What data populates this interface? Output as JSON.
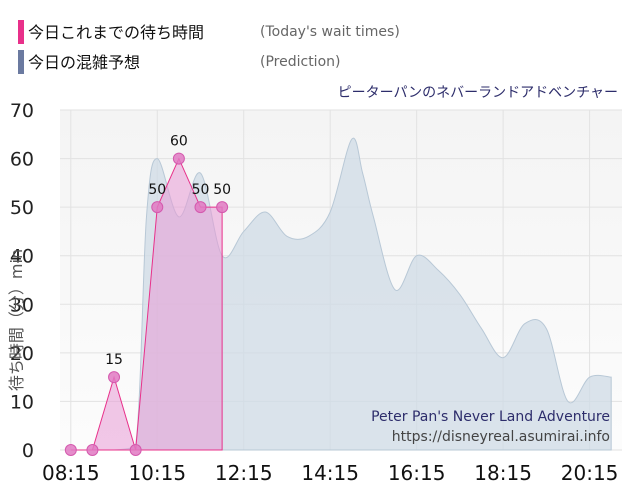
{
  "legend": {
    "today_label": "今日これまでの待ち時間",
    "today_sub": "(Today's wait times)",
    "today_color": "#e8308a",
    "prediction_label": "今日の混雑予想",
    "prediction_sub": "(Prediction)",
    "prediction_color": "#6b7aa0"
  },
  "attraction_name_ja": "ピーターパンのネバーランドアドベンチャー",
  "credit": {
    "name": "Peter Pan's Never Land Adventure",
    "url": "https://disneyreal.asumirai.info"
  },
  "chart_data": {
    "type": "area",
    "ylabel": "待ち時間（分）min",
    "ylim": [
      0,
      70
    ],
    "yticks": [
      0,
      10,
      20,
      30,
      40,
      50,
      60,
      70
    ],
    "xlim": [
      "08:00",
      "21:00"
    ],
    "xticks": [
      "08:15",
      "10:15",
      "12:15",
      "14:15",
      "16:15",
      "18:15",
      "20:15"
    ],
    "grid": true,
    "series": [
      {
        "name": "今日これまでの待ち時間",
        "color": "#e8308a",
        "x": [
          "08:15",
          "08:45",
          "09:15",
          "09:45",
          "10:15",
          "10:45",
          "11:15",
          "11:45"
        ],
        "y": [
          0,
          0,
          15,
          0,
          50,
          60,
          50,
          50
        ],
        "labels": [
          "",
          "",
          "15",
          "",
          "50",
          "60",
          "50",
          "50"
        ]
      },
      {
        "name": "今日の混雑予想",
        "color": "#6b7aa0",
        "x": [
          "08:15",
          "08:45",
          "09:15",
          "09:45",
          "10:00",
          "10:15",
          "10:45",
          "11:15",
          "11:45",
          "12:15",
          "12:45",
          "13:15",
          "13:45",
          "14:15",
          "14:45",
          "15:00",
          "15:15",
          "15:45",
          "16:15",
          "16:45",
          "17:15",
          "17:45",
          "18:15",
          "18:45",
          "19:15",
          "19:45",
          "20:15",
          "20:45"
        ],
        "y": [
          0,
          0,
          0,
          1,
          48,
          60,
          48,
          57,
          40,
          45,
          49,
          44,
          44,
          49,
          64,
          57,
          48,
          33,
          40,
          37,
          32,
          25,
          19,
          26,
          25,
          10,
          15,
          15
        ]
      }
    ]
  }
}
